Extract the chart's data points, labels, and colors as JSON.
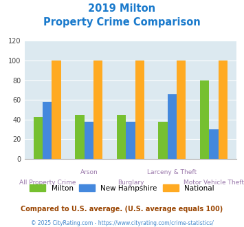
{
  "title_line1": "2019 Milton",
  "title_line2": "Property Crime Comparison",
  "categories": [
    "All Property Crime",
    "Arson",
    "Burglary",
    "Larceny & Theft",
    "Motor Vehicle Theft"
  ],
  "series": {
    "Milton": [
      43,
      45,
      45,
      38,
      80
    ],
    "New Hampshire": [
      58,
      38,
      38,
      66,
      30
    ],
    "National": [
      100,
      100,
      100,
      100,
      100
    ]
  },
  "bar_colors": {
    "Milton": "#76c030",
    "New Hampshire": "#4488dd",
    "National": "#ffaa22"
  },
  "ylim": [
    0,
    120
  ],
  "yticks": [
    0,
    20,
    40,
    60,
    80,
    100,
    120
  ],
  "title_color": "#1a7acc",
  "xlabel_color": "#9977aa",
  "legend_labels": [
    "Milton",
    "New Hampshire",
    "National"
  ],
  "footnote1": "Compared to U.S. average. (U.S. average equals 100)",
  "footnote2": "© 2025 CityRating.com - https://www.cityrating.com/crime-statistics/",
  "footnote1_color": "#994400",
  "footnote2_color": "#4488cc",
  "bg_color": "#dce9f0",
  "fig_bg_color": "#ffffff",
  "bar_width": 0.22
}
